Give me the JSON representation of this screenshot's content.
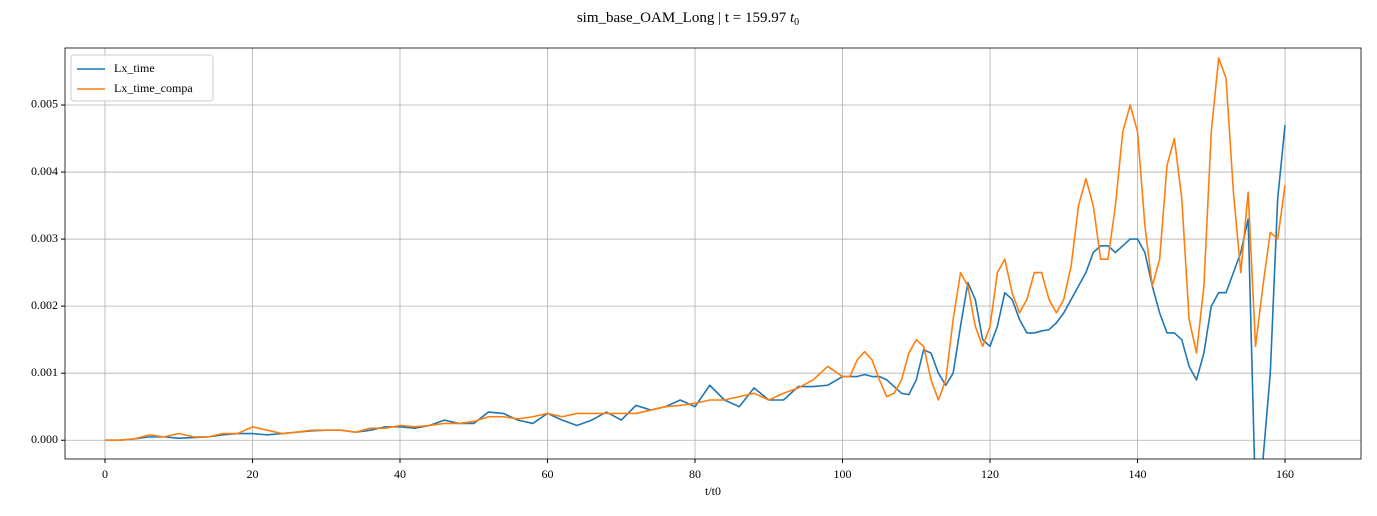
{
  "chart_data": {
    "type": "line",
    "title": "sim_base_OAM_Long | t = 159.97",
    "title_symbol": "t",
    "title_subscript": "0",
    "xlabel": "t/t0",
    "x": [
      0,
      2,
      4,
      6,
      8,
      10,
      12,
      14,
      16,
      18,
      20,
      22,
      24,
      26,
      28,
      30,
      32,
      34,
      36,
      38,
      40,
      42,
      44,
      46,
      48,
      50,
      52,
      54,
      56,
      58,
      60,
      62,
      64,
      66,
      68,
      70,
      72,
      74,
      76,
      78,
      80,
      82,
      84,
      86,
      88,
      90,
      92,
      94,
      96,
      98,
      100,
      101,
      102,
      103,
      104,
      105,
      106,
      107,
      108,
      109,
      110,
      111,
      112,
      113,
      114,
      115,
      116,
      117,
      118,
      119,
      120,
      121,
      122,
      123,
      124,
      125,
      126,
      127,
      128,
      129,
      130,
      131,
      132,
      133,
      134,
      135,
      136,
      137,
      138,
      139,
      140,
      141,
      142,
      143,
      144,
      145,
      146,
      147,
      148,
      149,
      150,
      151,
      152,
      153,
      154,
      155,
      156,
      157,
      158,
      159,
      160
    ],
    "series": [
      {
        "name": "Lx_time",
        "color": "#1f77b4",
        "values": [
          0,
          0,
          2e-05,
          5e-05,
          5e-05,
          3e-05,
          4e-05,
          5e-05,
          8e-05,
          0.0001,
          0.0001,
          8e-05,
          0.0001,
          0.00012,
          0.00014,
          0.00015,
          0.00015,
          0.00012,
          0.00015,
          0.0002,
          0.0002,
          0.00018,
          0.00022,
          0.0003,
          0.00025,
          0.00025,
          0.00042,
          0.0004,
          0.0003,
          0.00025,
          0.0004,
          0.0003,
          0.00022,
          0.0003,
          0.00042,
          0.0003,
          0.00052,
          0.00045,
          0.0005,
          0.0006,
          0.0005,
          0.00082,
          0.0006,
          0.0005,
          0.00078,
          0.0006,
          0.0006,
          0.0008,
          0.0008,
          0.00082,
          0.00095,
          0.00095,
          0.00095,
          0.00098,
          0.00095,
          0.00095,
          0.0009,
          0.0008,
          0.0007,
          0.00068,
          0.0009,
          0.00135,
          0.0013,
          0.001,
          0.00082,
          0.001,
          0.0017,
          0.00235,
          0.0021,
          0.0015,
          0.0014,
          0.0017,
          0.0022,
          0.0021,
          0.0018,
          0.0016,
          0.0016,
          0.00163,
          0.00165,
          0.00175,
          0.0019,
          0.0021,
          0.0023,
          0.0025,
          0.0028,
          0.0029,
          0.0029,
          0.0028,
          0.0029,
          0.003,
          0.003,
          0.0028,
          0.0023,
          0.0019,
          0.0016,
          0.0016,
          0.0015,
          0.0011,
          0.0009,
          0.0013,
          0.002,
          0.0022,
          0.0022,
          0.0025,
          0.0028,
          0.0033,
          -0.0009,
          -0.0003,
          0.001,
          0.0036,
          0.0047
        ]
      },
      {
        "name": "Lx_time_compa",
        "color": "#ff7f0e",
        "values": [
          0,
          0,
          2e-05,
          8e-05,
          5e-05,
          0.0001,
          5e-05,
          5e-05,
          0.0001,
          0.0001,
          0.0002,
          0.00015,
          0.0001,
          0.00012,
          0.00015,
          0.00015,
          0.00015,
          0.00012,
          0.00018,
          0.00018,
          0.00022,
          0.0002,
          0.00022,
          0.00025,
          0.00025,
          0.00028,
          0.00035,
          0.00035,
          0.00032,
          0.00035,
          0.0004,
          0.00035,
          0.0004,
          0.0004,
          0.0004,
          0.0004,
          0.0004,
          0.00045,
          0.0005,
          0.00052,
          0.00055,
          0.0006,
          0.0006,
          0.00065,
          0.0007,
          0.0006,
          0.0007,
          0.00078,
          0.0009,
          0.0011,
          0.00095,
          0.00095,
          0.0012,
          0.00132,
          0.0012,
          0.0009,
          0.00065,
          0.0007,
          0.0009,
          0.0013,
          0.0015,
          0.0014,
          0.0009,
          0.0006,
          0.0009,
          0.0018,
          0.0025,
          0.0023,
          0.0017,
          0.0014,
          0.0017,
          0.0025,
          0.0027,
          0.0022,
          0.0019,
          0.0021,
          0.0025,
          0.0025,
          0.0021,
          0.0019,
          0.0021,
          0.0026,
          0.0035,
          0.0039,
          0.0035,
          0.0027,
          0.0027,
          0.0035,
          0.0046,
          0.005,
          0.0046,
          0.0032,
          0.0023,
          0.0027,
          0.0041,
          0.0045,
          0.0036,
          0.0018,
          0.0013,
          0.0023,
          0.0046,
          0.0057,
          0.0054,
          0.0037,
          0.0025,
          0.0037,
          0.0014,
          0.0023,
          0.0031,
          0.003,
          0.0038
        ]
      }
    ],
    "xlim": [
      -5.42,
      170.3
    ],
    "ylim": [
      -0.00028,
      0.00585
    ],
    "xticks": [
      0,
      20,
      40,
      60,
      80,
      100,
      120,
      140,
      160
    ],
    "yticks": [
      {
        "value": 0,
        "label": "0.000"
      },
      {
        "value": 0.001,
        "label": "0.001"
      },
      {
        "value": 0.002,
        "label": "0.002"
      },
      {
        "value": 0.003,
        "label": "0.003"
      },
      {
        "value": 0.004,
        "label": "0.004"
      },
      {
        "value": 0.005,
        "label": "0.005"
      }
    ],
    "grid": true,
    "legend": "upper-left"
  }
}
